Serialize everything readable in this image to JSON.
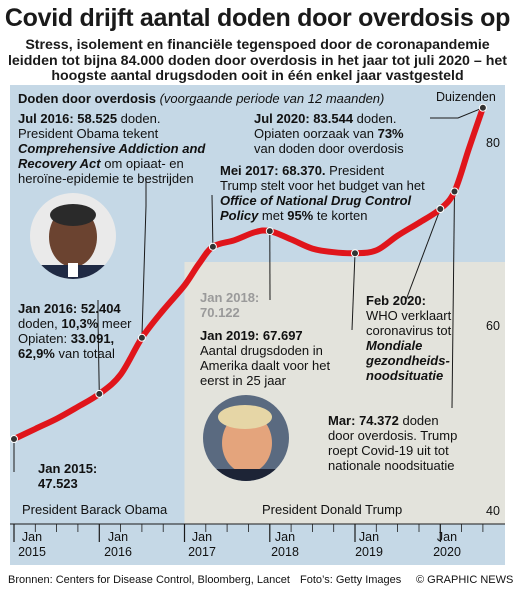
{
  "title": "Covid drijft aantal doden door overdosis op",
  "subtitle": "Stress, isolement en financiële tegenspoed door de coronapandemie leidden tot bijna 84.000 doden door overdosis in het jaar tot juli 2020 – het hoogste aantal drugsdoden ooit in één enkel jaar vastgesteld",
  "colors": {
    "background": "#c5d8e6",
    "trump_area": "#e3e3dc",
    "line": "#e0151b"
  },
  "chart_data": {
    "type": "line",
    "title": "Doden door overdosis",
    "subtitle": "(voorgaande periode van 12 maanden)",
    "unit_label": "Duizenden",
    "ylim": [
      40,
      86
    ],
    "yticks": [
      40,
      60,
      80
    ],
    "xlim": [
      "2015-01",
      "2020-08"
    ],
    "xticks": [
      {
        "line1": "Jan",
        "line2": "2015"
      },
      {
        "line1": "Jan",
        "line2": "2016"
      },
      {
        "line1": "Jan",
        "line2": "2017"
      },
      {
        "line1": "Jan",
        "line2": "2018"
      },
      {
        "line1": "Jan",
        "line2": "2019"
      },
      {
        "line1": "Jan",
        "line2": "2020"
      }
    ],
    "series": [
      {
        "x": [
          "2015-01",
          "2015-04",
          "2015-07",
          "2015-10",
          "2016-01",
          "2016-04",
          "2016-07",
          "2016-10",
          "2017-01",
          "2017-03",
          "2017-05",
          "2017-08",
          "2017-11",
          "2018-01",
          "2018-04",
          "2018-07",
          "2018-10",
          "2019-01",
          "2019-04",
          "2019-07",
          "2019-10",
          "2020-01",
          "2020-03",
          "2020-05",
          "2020-07"
        ],
        "values": [
          47.5,
          48.6,
          49.7,
          51.0,
          52.4,
          54.5,
          58.5,
          61.5,
          64.2,
          66.5,
          68.4,
          69.1,
          70.0,
          70.1,
          69.2,
          68.2,
          67.8,
          67.7,
          68.0,
          69.6,
          71.0,
          72.5,
          74.4,
          79.0,
          83.5
        ]
      }
    ],
    "annotations": [
      {
        "id": "jul2016",
        "date": "Jul 2016:",
        "value": "58.525",
        "text1": "doden.",
        "text2": "President Obama tekent",
        "emph": "Comprehensive Addiction and Recovery Act",
        "text3": "om opiaat- en heroïne-epidemie te bestrijden"
      },
      {
        "id": "jan2016",
        "date": "Jan 2016:",
        "value": "52.404",
        "text1": "doden,",
        "pct1": "10,3%",
        "text2": "meer",
        "text3": "Opiaten:",
        "opi_value": "33.091,",
        "pct2": "62,9%",
        "text4": "van totaal"
      },
      {
        "id": "jan2015",
        "date": "Jan 2015:",
        "value": "47.523"
      },
      {
        "id": "mei2017",
        "date": "Mei 2017:",
        "value": "68.370.",
        "text1": "President",
        "text2": "Trump stelt voor het budget van het",
        "emph": "Office of National Drug Control Policy",
        "text3": "met",
        "pct": "95%",
        "text4": "te korten"
      },
      {
        "id": "jan2018",
        "date": "Jan 2018:",
        "value": "70.122"
      },
      {
        "id": "jan2019",
        "date": "Jan 2019:",
        "value": "67.697",
        "text1": "Aantal drugsdoden in",
        "text2": "Amerika daalt voor het",
        "text3": "eerst in 25 jaar"
      },
      {
        "id": "jul2020",
        "date": "Jul 2020:",
        "value": "83.544",
        "text1": "doden.",
        "text2": "Opiaten oorzaak van",
        "pct": "73%",
        "text3": "van doden door overdosis"
      },
      {
        "id": "feb2020",
        "date": "Feb 2020:",
        "text1": "WHO verklaart",
        "text2": "coronavirus tot",
        "emph1": "Mondiale",
        "emph2": "gezondheids-",
        "emph3": "noodsituatie"
      },
      {
        "id": "mar2020",
        "date": "Mar:",
        "value": "74.372",
        "text1": "doden",
        "text2": "door overdosis. Trump",
        "text3": "roept Covid-19 uit tot",
        "text4": "nationale noodsituatie"
      }
    ],
    "eras": [
      {
        "label": "President Barack Obama"
      },
      {
        "label": "President Donald Trump"
      }
    ]
  },
  "footer": {
    "source": "Bronnen: Centers for Disease Control, Bloomberg, Lancet",
    "credit": "Foto’s: Getty Images",
    "copyright": "© GRAPHIC NEWS"
  }
}
